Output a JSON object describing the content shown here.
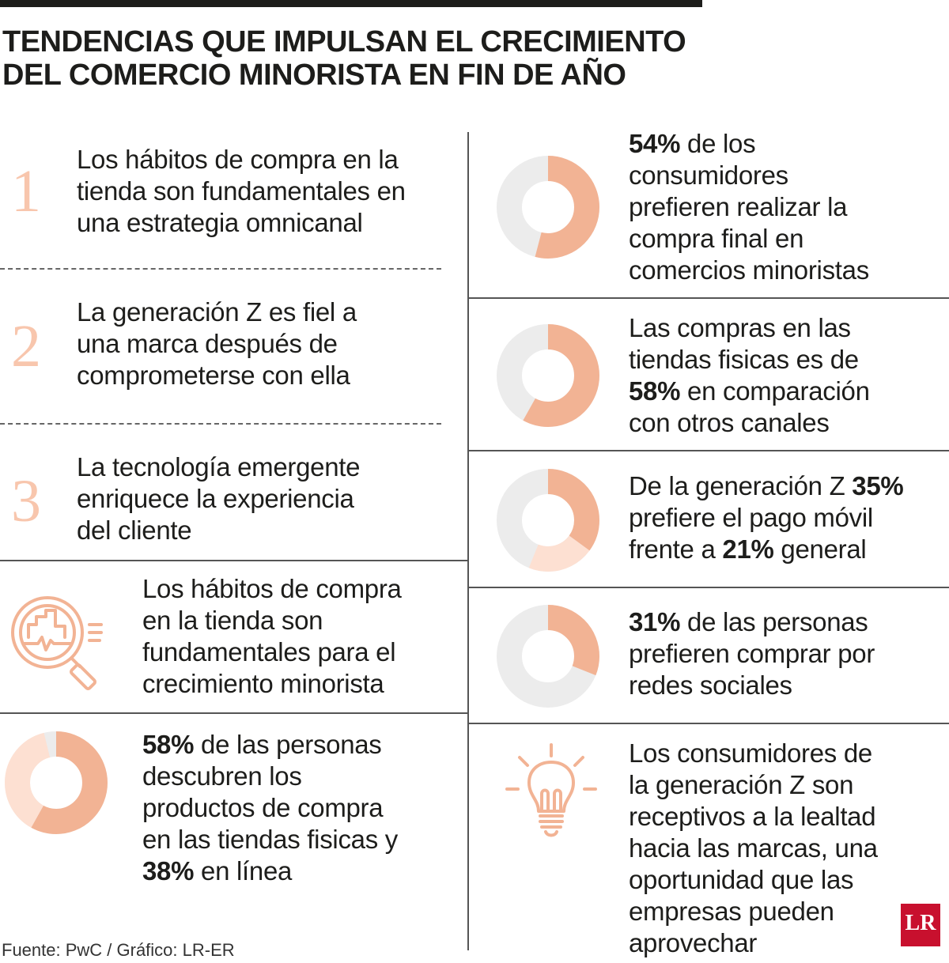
{
  "title": {
    "line1": "TENDENCIAS QUE IMPULSAN EL CRECIMIENTO",
    "line2": "DEL COMERCIO MINORISTA EN FIN DE AÑO"
  },
  "numbered_items": [
    {
      "number": "1",
      "lines": [
        "Los hábitos de compra en la",
        "tienda son fundamentales en",
        "una estrategia omnicanal"
      ]
    },
    {
      "number": "2",
      "lines": [
        "La generación Z es fiel a",
        "una marca después de",
        "comprometerse con ella"
      ]
    },
    {
      "number": "3",
      "lines": [
        "La tecnología emergente",
        "enriquece la experiencia",
        "del cliente"
      ]
    }
  ],
  "icon_item": {
    "icon": "magnifier-chart-icon",
    "lines": [
      "Los hábitos de compra",
      "en la tienda son",
      "fundamentales para el",
      "crecimiento minorista"
    ]
  },
  "left_stat": {
    "value_1": "58%",
    "l1_rest": " de las personas",
    "l2": "descubren los",
    "l3": "productos de compra",
    "l4": "en las tiendas fisicas y",
    "value_2": "38%",
    "l5_rest": " en línea"
  },
  "right_stats": [
    {
      "bold": "54%",
      "l1_rest": " de los",
      "l2": "consumidores",
      "l3": "prefieren realizar la",
      "l4": "compra final en",
      "l5": "comercios minoristas"
    },
    {
      "l1": "Las compras en las",
      "l2": "tiendas fisicas es de",
      "bold": "58%",
      "l3_rest": " en comparación",
      "l4": "con otros canales"
    },
    {
      "l1_pre": "De la generación Z ",
      "bold_1": "35%",
      "l2": "prefiere el pago móvil",
      "l3_pre": "frente a ",
      "bold_2": "21%",
      "l3_rest": " general"
    },
    {
      "bold": "31%",
      "l1_rest": " de las personas",
      "l2": "prefieren comprar por",
      "l3": "redes sociales"
    }
  ],
  "bulb_item": {
    "icon": "lightbulb-icon",
    "lines": [
      "Los consumidores de",
      "la generación Z son",
      "receptivos a la lealtad",
      "hacia las marcas, una",
      "oportunidad que las",
      "empresas pueden",
      "aprovechar"
    ]
  },
  "source": "Fuente: PwC / Gráfico: LR-ER",
  "logo": "LR",
  "colors": {
    "accent": "#f2b394",
    "accent_light": "#fde0d2",
    "track": "#ececec",
    "text": "#1d1d1b",
    "logo_red": "#c8102e"
  },
  "chart_data": [
    {
      "type": "pie",
      "variant": "donut",
      "values": [
        54
      ],
      "unit": "%"
    },
    {
      "type": "pie",
      "variant": "donut",
      "values": [
        58
      ],
      "unit": "%"
    },
    {
      "type": "pie",
      "variant": "donut",
      "values": [
        35,
        21
      ],
      "unit": "%"
    },
    {
      "type": "pie",
      "variant": "donut",
      "values": [
        31
      ],
      "unit": "%"
    },
    {
      "type": "pie",
      "variant": "donut",
      "values": [
        58,
        38
      ],
      "unit": "%"
    }
  ]
}
